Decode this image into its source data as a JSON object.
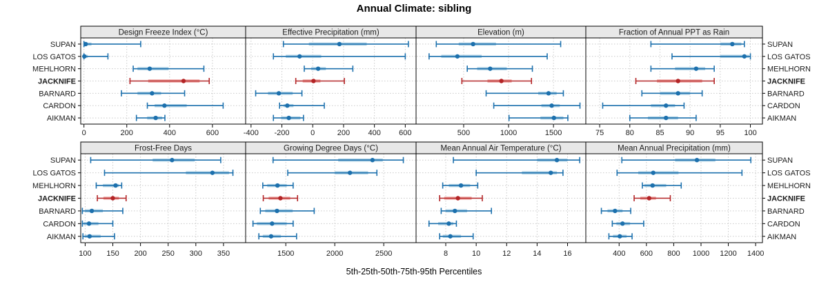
{
  "title": "Annual Climate: sibling",
  "xlabel": "5th-25th-50th-75th-95th Percentiles",
  "percentile_levels": [
    "5th",
    "25th",
    "50th",
    "75th",
    "95th"
  ],
  "sites": [
    "SUPAN",
    "LOS GATOS",
    "MEHLHORN",
    "JACKNIFE",
    "BARNARD",
    "CARDON",
    "AIKMAN"
  ],
  "highlight_site": "JACKNIFE",
  "colors": {
    "blue_dark": "#1c70ad",
    "blue_light": "#a9cee3",
    "red_dark": "#b32426",
    "red_light": "#f0a9a5",
    "grid": "#c9c9c9",
    "strip_bg": "#e8e8e8",
    "border": "#000000"
  },
  "chart_data": [
    {
      "type": "scatter",
      "variant": "percentile-interval",
      "row": 0,
      "col": 0,
      "title": "Design Freeze Index (°C)",
      "xticks": [
        0,
        200,
        400,
        600
      ],
      "xlim": [
        -15,
        755
      ],
      "series": [
        {
          "site": "SUPAN",
          "percentiles": [
            0,
            0,
            8,
            35,
            265
          ]
        },
        {
          "site": "LOS GATOS",
          "percentiles": [
            0,
            0,
            2,
            18,
            112
          ]
        },
        {
          "site": "MEHLHORN",
          "percentiles": [
            230,
            250,
            307,
            395,
            560
          ]
        },
        {
          "site": "JACKNIFE",
          "percentiles": [
            215,
            300,
            465,
            540,
            585
          ]
        },
        {
          "site": "BARNARD",
          "percentiles": [
            175,
            250,
            318,
            360,
            470
          ]
        },
        {
          "site": "CARDON",
          "percentiles": [
            296,
            330,
            376,
            480,
            650
          ]
        },
        {
          "site": "AIKMAN",
          "percentiles": [
            245,
            295,
            335,
            365,
            378
          ]
        }
      ]
    },
    {
      "type": "scatter",
      "variant": "percentile-interval",
      "row": 0,
      "col": 1,
      "title": "Effective Precipitation (mm)",
      "xticks": [
        -400,
        -200,
        0,
        200,
        400,
        600
      ],
      "xlim": [
        -435,
        670
      ],
      "series": [
        {
          "site": "SUPAN",
          "percentiles": [
            -190,
            -25,
            173,
            350,
            620
          ]
        },
        {
          "site": "LOS GATOS",
          "percentiles": [
            -255,
            -175,
            -85,
            55,
            600
          ]
        },
        {
          "site": "MEHLHORN",
          "percentiles": [
            -55,
            -10,
            35,
            85,
            260
          ]
        },
        {
          "site": "JACKNIFE",
          "percentiles": [
            -110,
            -65,
            5,
            50,
            205
          ]
        },
        {
          "site": "BARNARD",
          "percentiles": [
            -370,
            -290,
            -220,
            -130,
            -70
          ]
        },
        {
          "site": "CARDON",
          "percentiles": [
            -215,
            -190,
            -165,
            -125,
            75
          ]
        },
        {
          "site": "AIKMAN",
          "percentiles": [
            -255,
            -205,
            -155,
            -80,
            -60
          ]
        }
      ]
    },
    {
      "type": "scatter",
      "variant": "percentile-interval",
      "row": 0,
      "col": 2,
      "title": "Elevation (m)",
      "xticks": [
        500,
        1000,
        1500
      ],
      "xlim": [
        -30,
        1860
      ],
      "series": [
        {
          "site": "SUPAN",
          "percentiles": [
            195,
            445,
            605,
            860,
            1580
          ]
        },
        {
          "site": "LOS GATOS",
          "percentiles": [
            115,
            250,
            430,
            700,
            1430
          ]
        },
        {
          "site": "MEHLHORN",
          "percentiles": [
            540,
            650,
            795,
            980,
            1265
          ]
        },
        {
          "site": "JACKNIFE",
          "percentiles": [
            480,
            765,
            920,
            1035,
            1255
          ]
        },
        {
          "site": "BARNARD",
          "percentiles": [
            750,
            1330,
            1445,
            1535,
            1610
          ]
        },
        {
          "site": "CARDON",
          "percentiles": [
            835,
            1365,
            1480,
            1570,
            1795
          ]
        },
        {
          "site": "AIKMAN",
          "percentiles": [
            1005,
            1355,
            1505,
            1610,
            1660
          ]
        }
      ]
    },
    {
      "type": "scatter",
      "variant": "percentile-interval",
      "row": 0,
      "col": 3,
      "title": "Fraction of Annual PPT as Rain",
      "xticks": [
        75,
        80,
        85,
        90,
        95,
        100
      ],
      "xlim": [
        72.7,
        102
      ],
      "series": [
        {
          "site": "SUPAN",
          "percentiles": [
            83.5,
            95,
            97,
            98.5,
            99
          ]
        },
        {
          "site": "LOS GATOS",
          "percentiles": [
            87,
            95,
            99,
            99.8,
            100
          ]
        },
        {
          "site": "MEHLHORN",
          "percentiles": [
            83.5,
            87.5,
            91,
            92.5,
            94
          ]
        },
        {
          "site": "JACKNIFE",
          "percentiles": [
            81,
            84.5,
            88,
            92,
            94
          ]
        },
        {
          "site": "BARNARD",
          "percentiles": [
            82,
            85,
            88,
            90,
            92
          ]
        },
        {
          "site": "CARDON",
          "percentiles": [
            75.5,
            83.5,
            86,
            87.5,
            89
          ]
        },
        {
          "site": "AIKMAN",
          "percentiles": [
            80,
            83,
            86,
            88,
            91
          ]
        }
      ]
    },
    {
      "type": "scatter",
      "variant": "percentile-interval",
      "row": 1,
      "col": 0,
      "title": "Frost-Free Days",
      "xticks": [
        100,
        150,
        200,
        250,
        300,
        350
      ],
      "xlim": [
        92,
        390
      ],
      "series": [
        {
          "site": "SUPAN",
          "percentiles": [
            110,
            222,
            257,
            298,
            345
          ]
        },
        {
          "site": "LOS GATOS",
          "percentiles": [
            135,
            282,
            330,
            360,
            367
          ]
        },
        {
          "site": "MEHLHORN",
          "percentiles": [
            120,
            132,
            155,
            161,
            166
          ]
        },
        {
          "site": "JACKNIFE",
          "percentiles": [
            122,
            133,
            150,
            161,
            174
          ]
        },
        {
          "site": "BARNARD",
          "percentiles": [
            95,
            100,
            112,
            132,
            168
          ]
        },
        {
          "site": "CARDON",
          "percentiles": [
            95,
            97,
            107,
            124,
            150
          ]
        },
        {
          "site": "AIKMAN",
          "percentiles": [
            96,
            99,
            108,
            128,
            153
          ]
        }
      ]
    },
    {
      "type": "scatter",
      "variant": "percentile-interval",
      "row": 1,
      "col": 1,
      "title": "Growing Degree Days (°C)",
      "xticks": [
        1500,
        2000,
        2500
      ],
      "xlim": [
        1090,
        2830
      ],
      "series": [
        {
          "site": "SUPAN",
          "percentiles": [
            1370,
            2035,
            2385,
            2490,
            2700
          ]
        },
        {
          "site": "LOS GATOS",
          "percentiles": [
            1520,
            2000,
            2155,
            2340,
            2430
          ]
        },
        {
          "site": "MEHLHORN",
          "percentiles": [
            1265,
            1310,
            1415,
            1510,
            1575
          ]
        },
        {
          "site": "JACKNIFE",
          "percentiles": [
            1270,
            1325,
            1445,
            1545,
            1620
          ]
        },
        {
          "site": "BARNARD",
          "percentiles": [
            1240,
            1290,
            1410,
            1570,
            1790
          ]
        },
        {
          "site": "CARDON",
          "percentiles": [
            1165,
            1205,
            1360,
            1510,
            1575
          ]
        },
        {
          "site": "AIKMAN",
          "percentiles": [
            1225,
            1265,
            1350,
            1450,
            1610
          ]
        }
      ]
    },
    {
      "type": "scatter",
      "variant": "percentile-interval",
      "row": 1,
      "col": 2,
      "title": "Mean Annual Air Temperature (°C)",
      "xticks": [
        8,
        10,
        12,
        14,
        16
      ],
      "xlim": [
        6.05,
        17.2
      ],
      "series": [
        {
          "site": "SUPAN",
          "percentiles": [
            8.5,
            14.0,
            15.3,
            16.0,
            16.8
          ]
        },
        {
          "site": "LOS GATOS",
          "percentiles": [
            10.0,
            13.0,
            14.9,
            15.3,
            15.7
          ]
        },
        {
          "site": "MEHLHORN",
          "percentiles": [
            7.8,
            8.2,
            9.0,
            9.6,
            10.1
          ]
        },
        {
          "site": "JACKNIFE",
          "percentiles": [
            7.6,
            7.9,
            8.8,
            9.7,
            10.4
          ]
        },
        {
          "site": "BARNARD",
          "percentiles": [
            7.7,
            8.0,
            8.6,
            9.4,
            11.0
          ]
        },
        {
          "site": "CARDON",
          "percentiles": [
            6.9,
            7.5,
            8.2,
            8.5,
            8.7
          ]
        },
        {
          "site": "AIKMAN",
          "percentiles": [
            7.6,
            7.8,
            8.3,
            9.0,
            9.8
          ]
        }
      ]
    },
    {
      "type": "scatter",
      "variant": "percentile-interval",
      "row": 1,
      "col": 3,
      "title": "Mean Annual Precipitation (mm)",
      "xticks": [
        400,
        600,
        800,
        1000,
        1200,
        1400
      ],
      "xlim": [
        156,
        1450
      ],
      "series": [
        {
          "site": "SUPAN",
          "percentiles": [
            420,
            810,
            970,
            1105,
            1365
          ]
        },
        {
          "site": "LOS GATOS",
          "percentiles": [
            385,
            540,
            650,
            835,
            1300
          ]
        },
        {
          "site": "MEHLHORN",
          "percentiles": [
            570,
            585,
            645,
            745,
            855
          ]
        },
        {
          "site": "JACKNIFE",
          "percentiles": [
            510,
            555,
            620,
            670,
            775
          ]
        },
        {
          "site": "BARNARD",
          "percentiles": [
            270,
            315,
            370,
            425,
            485
          ]
        },
        {
          "site": "CARDON",
          "percentiles": [
            350,
            380,
            425,
            480,
            580
          ]
        },
        {
          "site": "AIKMAN",
          "percentiles": [
            325,
            355,
            405,
            455,
            495
          ]
        }
      ]
    }
  ]
}
